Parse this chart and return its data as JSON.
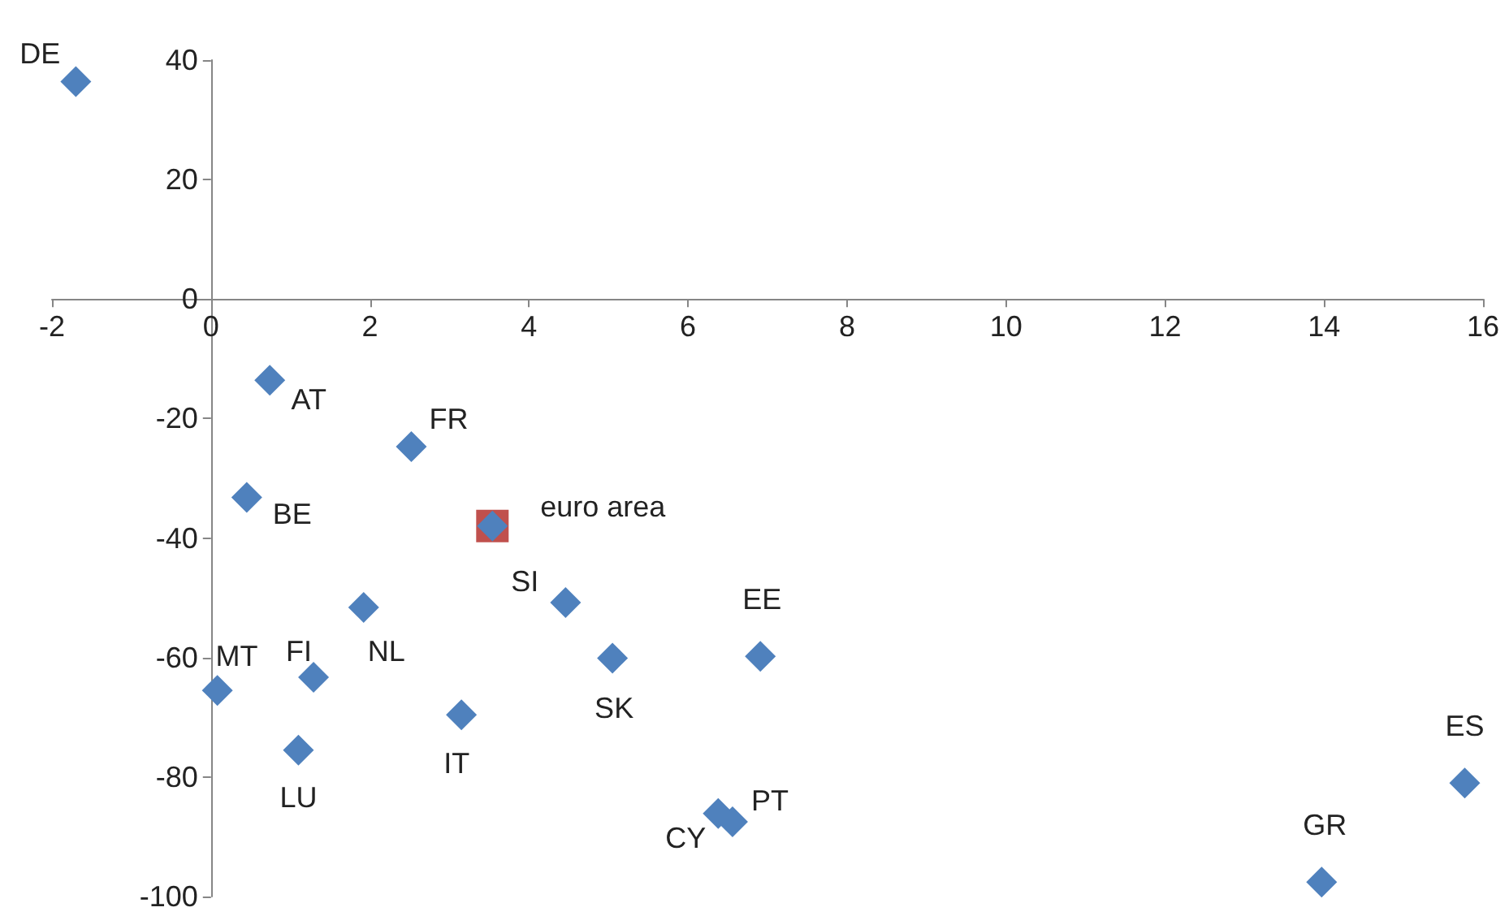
{
  "chart_data": {
    "type": "scatter",
    "x": [
      -1.7,
      0.74,
      2.52,
      0.45,
      3.54,
      1.92,
      4.46,
      5.05,
      6.91,
      0.08,
      1.29,
      3.15,
      1.1,
      6.38,
      6.56,
      13.97,
      15.77
    ],
    "series": [
      {
        "color": "#c0504d",
        "marker": "square",
        "x": [
          3.54
        ],
        "values": [
          -38.0
        ]
      },
      {
        "color": "#4f81bd",
        "marker": "diamond",
        "values": [
          36.4,
          -13.6,
          -24.7,
          -33.2,
          -38.0,
          -51.6,
          -50.8,
          -60.1,
          -59.8,
          -65.5,
          -63.3,
          -69.6,
          -75.5,
          -86.1,
          -87.5,
          -97.6,
          -81.0
        ]
      }
    ],
    "annotations": [
      {
        "text": "DE",
        "x": -1.7,
        "y": 36.4
      },
      {
        "text": "AT",
        "x": 0.74,
        "y": -13.6
      },
      {
        "text": "FR",
        "x": 2.52,
        "y": -24.7
      },
      {
        "text": "BE",
        "x": 0.45,
        "y": -33.2
      },
      {
        "text": "euro area",
        "x": 3.54,
        "y": -38.0
      },
      {
        "text": "NL",
        "x": 1.92,
        "y": -51.6
      },
      {
        "text": "SI",
        "x": 4.46,
        "y": -50.8
      },
      {
        "text": "SK",
        "x": 5.05,
        "y": -60.1
      },
      {
        "text": "EE",
        "x": 6.91,
        "y": -59.8
      },
      {
        "text": "MT",
        "x": 0.08,
        "y": -65.5
      },
      {
        "text": "FI",
        "x": 1.29,
        "y": -63.3
      },
      {
        "text": "IT",
        "x": 3.15,
        "y": -69.6
      },
      {
        "text": "LU",
        "x": 1.1,
        "y": -75.5
      },
      {
        "text": "CY",
        "x": 6.38,
        "y": -86.1
      },
      {
        "text": "PT",
        "x": 6.56,
        "y": -87.5
      },
      {
        "text": "GR",
        "x": 13.97,
        "y": -97.6
      },
      {
        "text": "ES",
        "x": 15.77,
        "y": -81.0
      }
    ],
    "xlim": [
      -2,
      16
    ],
    "xticks": [
      -2,
      0,
      2,
      4,
      6,
      8,
      10,
      12,
      14,
      16
    ],
    "ylim": [
      -100,
      40
    ],
    "yticks": [
      -100,
      -80,
      -60,
      -40,
      -20,
      0,
      20,
      40
    ],
    "tick_labels": true
  }
}
